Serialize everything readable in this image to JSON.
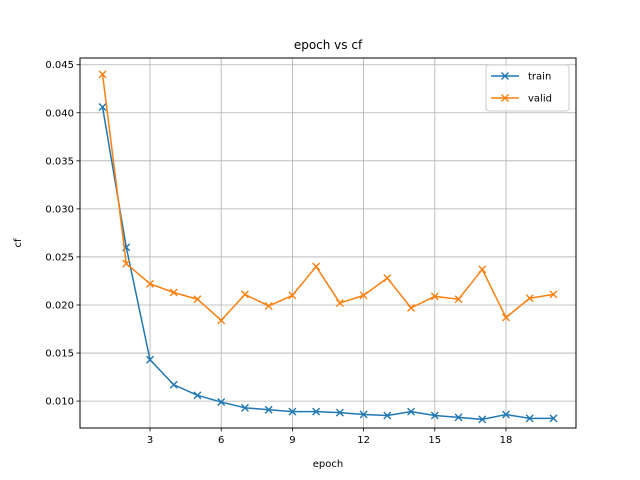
{
  "chart_data": {
    "type": "line",
    "title": "epoch vs cf",
    "xlabel": "epoch",
    "ylabel": "cf",
    "xlim": [
      0.05,
      20.95
    ],
    "ylim": [
      0.0072,
      0.0457
    ],
    "xticks": [
      3,
      6,
      9,
      12,
      15,
      18
    ],
    "yticks": [
      0.01,
      0.015,
      0.02,
      0.025,
      0.03,
      0.035,
      0.04,
      0.045
    ],
    "ytick_labels": [
      "0.010",
      "0.015",
      "0.020",
      "0.025",
      "0.030",
      "0.035",
      "0.040",
      "0.045"
    ],
    "grid": true,
    "legend_position": "top-right",
    "marker": "x",
    "x": [
      1,
      2,
      3,
      4,
      5,
      6,
      7,
      8,
      9,
      10,
      11,
      12,
      13,
      14,
      15,
      16,
      17,
      18,
      19,
      20
    ],
    "series": [
      {
        "name": "train",
        "color": "#1f77b4",
        "values": [
          0.0406,
          0.026,
          0.0143,
          0.0117,
          0.0106,
          0.0099,
          0.0093,
          0.0091,
          0.0089,
          0.0089,
          0.0088,
          0.0086,
          0.0085,
          0.0089,
          0.0085,
          0.0083,
          0.0081,
          0.0086,
          0.0082,
          0.0082
        ]
      },
      {
        "name": "valid",
        "color": "#ff7f0e",
        "values": [
          0.044,
          0.0243,
          0.0222,
          0.0213,
          0.0206,
          0.0184,
          0.0211,
          0.0199,
          0.021,
          0.024,
          0.0202,
          0.021,
          0.0228,
          0.0197,
          0.0209,
          0.0206,
          0.0237,
          0.0187,
          0.0207,
          0.0211
        ]
      }
    ]
  }
}
